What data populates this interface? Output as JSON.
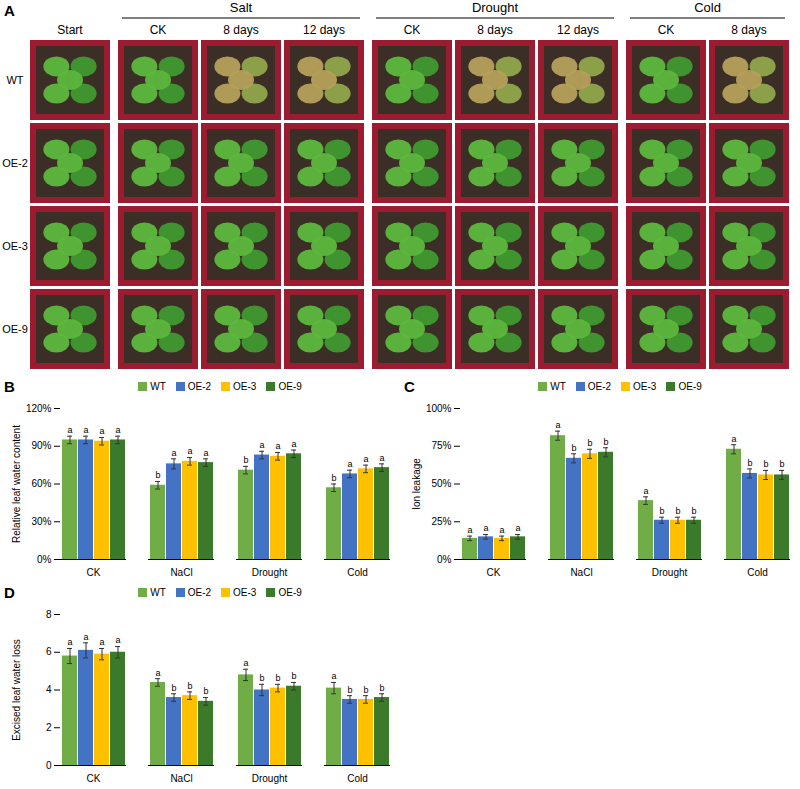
{
  "panel_a": {
    "label": "A",
    "start": "Start",
    "rows": [
      "WT",
      "OE-2",
      "OE-3",
      "OE-9"
    ],
    "groups": [
      {
        "title": "Salt",
        "columns": [
          "CK",
          "8 days",
          "12 days"
        ]
      },
      {
        "title": "Drought",
        "columns": [
          "CK",
          "8 days",
          "12 days"
        ]
      },
      {
        "title": "Cold",
        "columns": [
          "CK",
          "8 days"
        ]
      }
    ]
  },
  "chart_data": [
    {
      "type": "bar",
      "panel": "B",
      "y_label": "Relative leaf water content",
      "categories": [
        "CK",
        "NaCl",
        "Drought",
        "Cold"
      ],
      "series": [
        {
          "name": "WT",
          "color": "#70ad47",
          "values": [
            95,
            59,
            71,
            57
          ],
          "errors": [
            3,
            3,
            3,
            3
          ],
          "letters": [
            "a",
            "b",
            "b",
            "b"
          ]
        },
        {
          "name": "OE-2",
          "color": "#4472c4",
          "values": [
            95,
            76,
            83,
            68
          ],
          "errors": [
            3,
            4,
            3,
            3
          ],
          "letters": [
            "a",
            "a",
            "a",
            "a"
          ]
        },
        {
          "name": "OE-3",
          "color": "#ffc000",
          "values": [
            94,
            78,
            82,
            72
          ],
          "errors": [
            3,
            3,
            3,
            3
          ],
          "letters": [
            "a",
            "a",
            "a",
            "a"
          ]
        },
        {
          "name": "OE-9",
          "color": "#3a7a2a",
          "values": [
            95,
            77,
            84,
            73
          ],
          "errors": [
            3,
            3,
            3,
            3
          ],
          "letters": [
            "a",
            "a",
            "a",
            "a"
          ]
        }
      ],
      "ylim": [
        0,
        120
      ],
      "yticks": [
        {
          "value": 0,
          "label": "0%"
        },
        {
          "value": 30,
          "label": "30%"
        },
        {
          "value": 60,
          "label": "60%"
        },
        {
          "value": 90,
          "label": "90%"
        },
        {
          "value": 120,
          "label": "120%"
        }
      ],
      "legend": "top"
    },
    {
      "type": "bar",
      "panel": "C",
      "y_label": "Ion leakage",
      "categories": [
        "CK",
        "NaCl",
        "Drought",
        "Cold"
      ],
      "series": [
        {
          "name": "WT",
          "color": "#70ad47",
          "values": [
            14,
            82,
            39,
            73
          ],
          "errors": [
            1.5,
            3,
            2.5,
            3
          ],
          "letters": [
            "a",
            "a",
            "a",
            "a"
          ]
        },
        {
          "name": "OE-2",
          "color": "#4472c4",
          "values": [
            15,
            67,
            26,
            57
          ],
          "errors": [
            1.5,
            3,
            2,
            3
          ],
          "letters": [
            "a",
            "b",
            "b",
            "b"
          ]
        },
        {
          "name": "OE-3",
          "color": "#ffc000",
          "values": [
            14,
            70,
            26,
            56
          ],
          "errors": [
            1.5,
            3,
            2,
            3
          ],
          "letters": [
            "a",
            "b",
            "b",
            "b"
          ]
        },
        {
          "name": "OE-9",
          "color": "#3a7a2a",
          "values": [
            15,
            71,
            26,
            56
          ],
          "errors": [
            1.5,
            3,
            2,
            3
          ],
          "letters": [
            "a",
            "b",
            "b",
            "b"
          ]
        }
      ],
      "ylim": [
        0,
        100
      ],
      "yticks": [
        {
          "value": 0,
          "label": "0%"
        },
        {
          "value": 25,
          "label": "25%"
        },
        {
          "value": 50,
          "label": "50%"
        },
        {
          "value": 75,
          "label": "75%"
        },
        {
          "value": 100,
          "label": "100%"
        }
      ],
      "legend": "top"
    },
    {
      "type": "bar",
      "panel": "D",
      "y_label": "Excised leaf water loss",
      "categories": [
        "CK",
        "NaCl",
        "Drought",
        "Cold"
      ],
      "series": [
        {
          "name": "WT",
          "color": "#70ad47",
          "values": [
            5.8,
            4.4,
            4.8,
            4.1
          ],
          "errors": [
            0.4,
            0.2,
            0.3,
            0.3
          ],
          "letters": [
            "a",
            "a",
            "a",
            "a"
          ]
        },
        {
          "name": "OE-2",
          "color": "#4472c4",
          "values": [
            6.1,
            3.6,
            4.0,
            3.5
          ],
          "errors": [
            0.4,
            0.2,
            0.3,
            0.2
          ],
          "letters": [
            "a",
            "b",
            "b",
            "b"
          ]
        },
        {
          "name": "OE-3",
          "color": "#ffc000",
          "values": [
            5.9,
            3.7,
            4.1,
            3.5
          ],
          "errors": [
            0.3,
            0.2,
            0.2,
            0.2
          ],
          "letters": [
            "a",
            "b",
            "b",
            "b"
          ]
        },
        {
          "name": "OE-9",
          "color": "#3a7a2a",
          "values": [
            6.0,
            3.4,
            4.2,
            3.6
          ],
          "errors": [
            0.3,
            0.2,
            0.2,
            0.2
          ],
          "letters": [
            "a",
            "b",
            "b",
            "b"
          ]
        }
      ],
      "ylim": [
        0,
        8
      ],
      "yticks": [
        0,
        2,
        4,
        6,
        8
      ],
      "legend": "top"
    }
  ]
}
